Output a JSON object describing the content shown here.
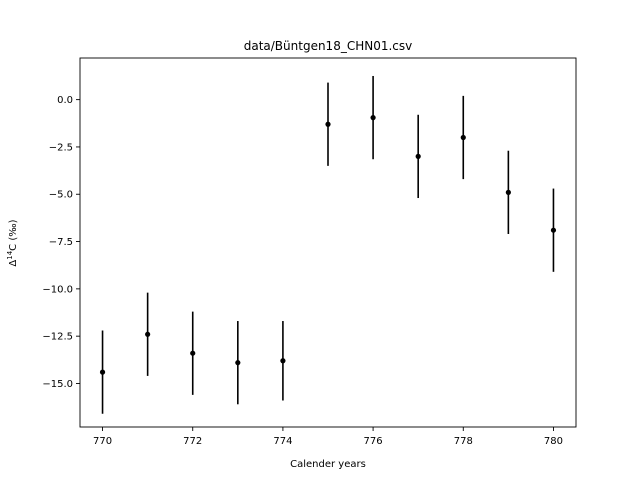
{
  "chart_data": {
    "type": "scatter",
    "title": "data/Büntgen18_CHN01.csv",
    "xlabel": "Calender years",
    "ylabel_parts": {
      "prefix": "Δ",
      "superscript": "14",
      "suffix": "C (‰)"
    },
    "xlim": [
      769.5,
      780.5
    ],
    "ylim": [
      -17.3,
      2.2
    ],
    "x_ticks": [
      770,
      772,
      774,
      776,
      778,
      780
    ],
    "x_tick_labels": [
      "770",
      "772",
      "774",
      "776",
      "778",
      "780"
    ],
    "y_ticks": [
      0.0,
      -2.5,
      -5.0,
      -7.5,
      -10.0,
      -12.5,
      -15.0
    ],
    "y_tick_labels": [
      "0.0",
      "−2.5",
      "−5.0",
      "−7.5",
      "−10.0",
      "−12.5",
      "−15.0"
    ],
    "grid": false,
    "legend": "none",
    "marker_color": "#000000",
    "series": [
      {
        "x": [
          770,
          771,
          772,
          773,
          774,
          775,
          776,
          777,
          778,
          779,
          780
        ],
        "y": [
          -14.4,
          -12.4,
          -13.4,
          -13.9,
          -13.8,
          -1.3,
          -0.95,
          -3.0,
          -2.0,
          -4.9,
          -6.9
        ],
        "y_error": [
          2.2,
          2.2,
          2.2,
          2.2,
          2.1,
          2.2,
          2.2,
          2.2,
          2.2,
          2.2,
          2.2
        ]
      }
    ]
  }
}
